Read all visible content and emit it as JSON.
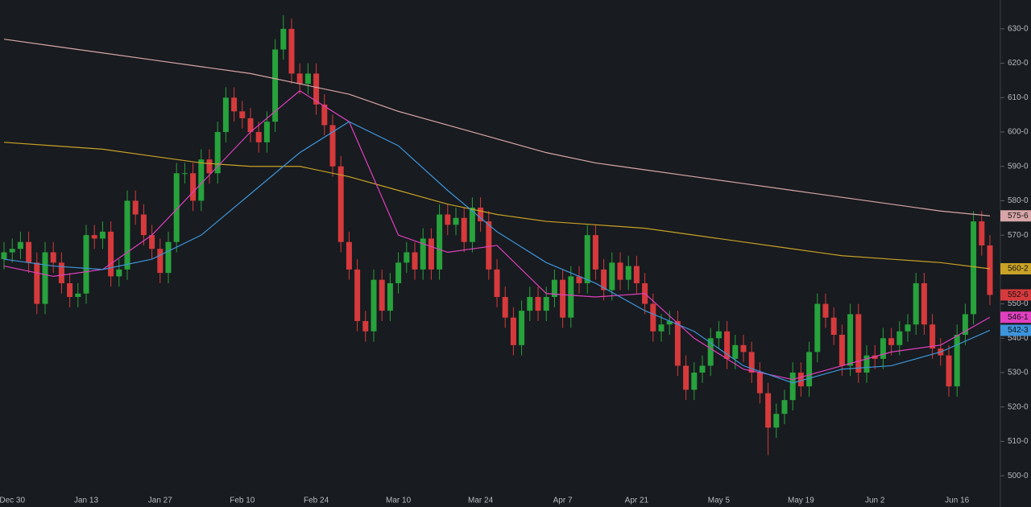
{
  "chart_data": {
    "type": "candlestick",
    "categories": [
      null,
      "Dec 30",
      null,
      null,
      null,
      null,
      null,
      null,
      null,
      null,
      "Jan 13",
      null,
      null,
      null,
      null,
      null,
      null,
      null,
      null,
      "Jan 27",
      null,
      null,
      null,
      null,
      null,
      null,
      null,
      null,
      null,
      "Feb 10",
      null,
      null,
      null,
      null,
      null,
      null,
      null,
      null,
      "Feb 24",
      null,
      null,
      null,
      null,
      null,
      null,
      null,
      null,
      null,
      "Mar 10",
      null,
      null,
      null,
      null,
      null,
      null,
      null,
      null,
      null,
      "Mar 24",
      null,
      null,
      null,
      null,
      null,
      null,
      null,
      null,
      null,
      "Apr 7",
      null,
      null,
      null,
      null,
      null,
      null,
      null,
      null,
      "Apr 21",
      null,
      null,
      null,
      null,
      null,
      null,
      null,
      null,
      null,
      "May 5",
      null,
      null,
      null,
      null,
      null,
      null,
      null,
      null,
      null,
      "May 19",
      null,
      null,
      null,
      null,
      null,
      null,
      null,
      null,
      "Jun 2",
      null,
      null,
      null,
      null,
      null,
      null,
      null,
      null,
      null,
      "Jun 16",
      null,
      null,
      null,
      null
    ],
    "open": [
      563,
      565,
      566,
      568,
      562,
      550,
      565,
      562,
      556,
      552,
      553,
      570,
      569,
      571,
      558,
      560,
      580,
      576,
      570,
      566,
      559,
      568,
      588,
      588,
      580,
      592,
      588,
      600,
      610,
      606,
      604,
      600,
      597,
      603,
      624,
      630,
      617,
      614,
      617,
      608,
      602,
      590,
      568,
      560,
      545,
      542,
      557,
      548,
      556,
      562,
      565,
      560,
      569,
      560,
      576,
      573,
      575,
      568,
      578,
      574,
      560,
      552,
      546,
      538,
      548,
      552,
      548,
      552,
      557,
      546,
      558,
      556,
      570,
      560,
      554,
      562,
      557,
      561,
      556,
      550,
      542,
      544,
      545,
      532,
      525,
      530,
      532,
      540,
      542,
      534,
      538,
      536,
      530,
      524,
      514,
      518,
      522,
      530,
      526,
      536,
      550,
      546,
      541,
      532,
      547,
      530,
      535,
      534,
      540,
      538,
      542,
      544,
      556,
      544,
      537,
      535,
      526,
      541,
      547,
      574,
      567
    ],
    "high": [
      568,
      569,
      571,
      571,
      565,
      568,
      568,
      565,
      559,
      556,
      573,
      573,
      574,
      574,
      563,
      583,
      583,
      579,
      573,
      569,
      571,
      591,
      591,
      591,
      595,
      595,
      603,
      613,
      613,
      609,
      607,
      603,
      606,
      627,
      634,
      633,
      620,
      620,
      620,
      611,
      605,
      593,
      571,
      563,
      548,
      560,
      560,
      559,
      565,
      568,
      568,
      572,
      572,
      579,
      579,
      578,
      578,
      581,
      581,
      577,
      563,
      555,
      549,
      551,
      555,
      555,
      555,
      560,
      560,
      561,
      561,
      573,
      573,
      563,
      565,
      565,
      564,
      564,
      559,
      553,
      547,
      548,
      548,
      535,
      533,
      535,
      543,
      545,
      545,
      541,
      541,
      539,
      533,
      527,
      521,
      525,
      533,
      533,
      539,
      553,
      553,
      549,
      544,
      550,
      550,
      538,
      538,
      543,
      543,
      545,
      547,
      559,
      559,
      547,
      540,
      538,
      544,
      550,
      577,
      577,
      570
    ],
    "low": [
      560,
      562,
      563,
      559,
      547,
      547,
      559,
      553,
      549,
      549,
      550,
      566,
      566,
      555,
      555,
      557,
      573,
      567,
      563,
      556,
      556,
      565,
      585,
      577,
      577,
      585,
      585,
      597,
      603,
      601,
      597,
      594,
      594,
      600,
      621,
      614,
      611,
      611,
      605,
      599,
      587,
      565,
      557,
      542,
      539,
      539,
      545,
      545,
      553,
      559,
      557,
      557,
      557,
      557,
      570,
      570,
      565,
      565,
      571,
      557,
      549,
      543,
      535,
      535,
      545,
      545,
      545,
      549,
      543,
      543,
      553,
      553,
      557,
      551,
      551,
      554,
      554,
      553,
      547,
      539,
      539,
      541,
      529,
      522,
      522,
      527,
      529,
      537,
      531,
      531,
      533,
      527,
      521,
      506,
      511,
      515,
      519,
      523,
      523,
      533,
      543,
      538,
      529,
      529,
      527,
      527,
      531,
      531,
      535,
      535,
      539,
      541,
      541,
      534,
      532,
      523,
      523,
      538,
      544,
      564,
      549.6
    ],
    "close": [
      565,
      566,
      568,
      562,
      550,
      565,
      562,
      556,
      552,
      553,
      570,
      569,
      571,
      558,
      560,
      580,
      576,
      570,
      566,
      559,
      568,
      588,
      588,
      580,
      592,
      588,
      600,
      610,
      606,
      604,
      600,
      597,
      603,
      624,
      630,
      617,
      614,
      617,
      608,
      602,
      590,
      568,
      560,
      545,
      542,
      557,
      548,
      556,
      562,
      565,
      560,
      569,
      560,
      576,
      573,
      575,
      568,
      578,
      574,
      560,
      552,
      546,
      538,
      548,
      552,
      548,
      552,
      557,
      546,
      558,
      556,
      570,
      560,
      554,
      562,
      557,
      561,
      556,
      550,
      542,
      544,
      545,
      532,
      525,
      530,
      532,
      540,
      542,
      534,
      538,
      536,
      530,
      524,
      514,
      518,
      522,
      530,
      526,
      536,
      550,
      546,
      541,
      532,
      547,
      530,
      535,
      534,
      540,
      538,
      542,
      544,
      556,
      544,
      537,
      535,
      526,
      541,
      547,
      574,
      567,
      552.6
    ],
    "up_color": "#27a23c",
    "down_color": "#d63a3c",
    "last_label": "552-6",
    "series": [
      {
        "color": "#d8a6a8",
        "last_label": "575-6",
        "x": [
          0,
          6,
          12,
          18,
          24,
          30,
          36,
          42,
          48,
          54,
          60,
          66,
          72,
          78,
          84,
          90,
          96,
          102,
          108,
          114,
          120
        ],
        "values": [
          627,
          625,
          623,
          621,
          619,
          617,
          614,
          611,
          606,
          602,
          598,
          594,
          591,
          589,
          587,
          585,
          583,
          581,
          579,
          577,
          575.6
        ]
      },
      {
        "color": "#c9a227",
        "last_label": "560-2",
        "x": [
          0,
          6,
          12,
          18,
          24,
          30,
          36,
          42,
          48,
          54,
          60,
          66,
          72,
          78,
          84,
          90,
          96,
          102,
          108,
          114,
          120
        ],
        "values": [
          597,
          596,
          595,
          593,
          591,
          590,
          590,
          587,
          583,
          579,
          576,
          574,
          573,
          572,
          570,
          568,
          566,
          564,
          563,
          562,
          560.2
        ]
      },
      {
        "color": "#e040c0",
        "last_label": "546-1",
        "x": [
          0,
          6,
          12,
          18,
          24,
          30,
          36,
          42,
          48,
          54,
          60,
          66,
          72,
          78,
          84,
          90,
          96,
          102,
          108,
          114,
          120
        ],
        "values": [
          561,
          558,
          560,
          570,
          585,
          600,
          612,
          603,
          570,
          565,
          567,
          553,
          552,
          553,
          540,
          531,
          528,
          532,
          536,
          538,
          546.1
        ]
      },
      {
        "color": "#3d95dc",
        "last_label": "542-3",
        "x": [
          0,
          6,
          12,
          18,
          24,
          30,
          36,
          42,
          48,
          54,
          60,
          66,
          72,
          78,
          84,
          90,
          96,
          102,
          108,
          114,
          120
        ],
        "values": [
          563,
          561,
          560,
          563,
          570,
          582,
          594,
          603,
          596,
          583,
          571,
          562,
          556,
          548,
          542,
          532,
          527,
          531,
          532,
          536,
          542.3
        ]
      }
    ],
    "ylim": [
      490.9,
      638.4
    ],
    "yticks": [
      {
        "value": 500,
        "label": "500-0"
      },
      {
        "value": 510,
        "label": "510-0"
      },
      {
        "value": 520,
        "label": "520-0"
      },
      {
        "value": 530,
        "label": "530-0"
      },
      {
        "value": 540,
        "label": "540-0"
      },
      {
        "value": 550,
        "label": "550-0"
      },
      {
        "value": 560,
        "label": "560-0"
      },
      {
        "value": 570,
        "label": "570-0"
      },
      {
        "value": 580,
        "label": "580-0"
      },
      {
        "value": 590,
        "label": "590-0"
      },
      {
        "value": 600,
        "label": "600-0"
      },
      {
        "value": 610,
        "label": "610-0"
      },
      {
        "value": 620,
        "label": "620-0"
      },
      {
        "value": 630,
        "label": "630-0"
      }
    ]
  }
}
